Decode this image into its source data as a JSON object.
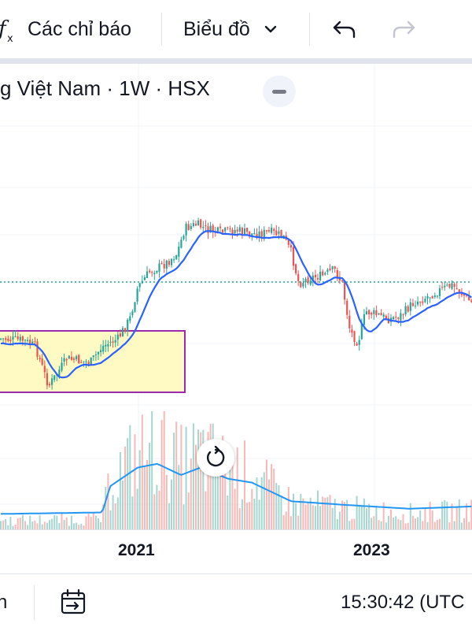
{
  "toolbar": {
    "indicators_label": "Các chỉ báo",
    "chart_type_label": "Biểu đồ",
    "icons": [
      "fx-icon",
      "chevron-down-icon",
      "undo-icon",
      "redo-icon"
    ]
  },
  "legend": {
    "symbol_text": "g Việt Nam · 1W · HSX"
  },
  "time_axis": {
    "labels": [
      "2021",
      "2023"
    ]
  },
  "bottom_bar": {
    "left_text": "n",
    "clock": "15:30:42 (UTC"
  },
  "colors": {
    "up": "#26a69a",
    "down": "#ef5350",
    "ma_line": "#2962ff",
    "volume_ma": "#2196f3",
    "highlight_fill": "#fff9c4",
    "highlight_border": "#9c27b0",
    "price_line": "#26a69a"
  }
}
